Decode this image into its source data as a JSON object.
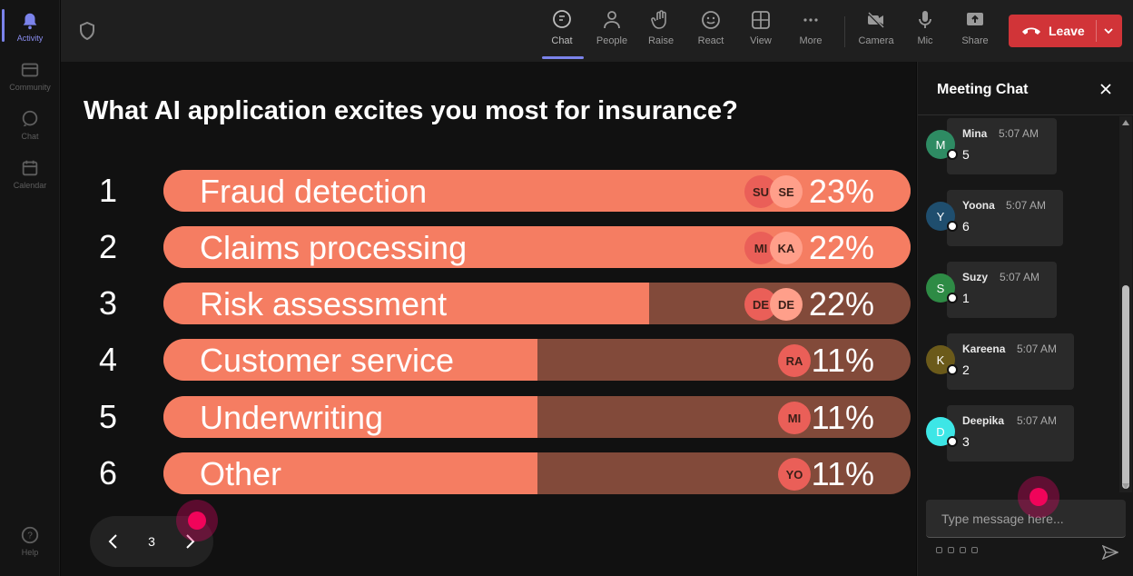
{
  "rail": {
    "items": [
      {
        "label": "Activity"
      },
      {
        "label": "Community"
      },
      {
        "label": "Chat"
      },
      {
        "label": "Calendar"
      },
      {
        "label": "Help"
      }
    ]
  },
  "toolbar": {
    "chat": "Chat",
    "people": "People",
    "raise": "Raise",
    "react": "React",
    "view": "View",
    "more": "More",
    "camera": "Camera",
    "mic": "Mic",
    "share": "Share",
    "leave": "Leave"
  },
  "poll": {
    "question": "What AI application excites you most for insurance?",
    "options": [
      {
        "rank": "1",
        "label": "Fraud detection",
        "percent": "23%",
        "fill": 1.0,
        "avatars": [
          "SU",
          "SE"
        ]
      },
      {
        "rank": "2",
        "label": "Claims processing",
        "percent": "22%",
        "fill": 1.0,
        "avatars": [
          "MI",
          "KA"
        ]
      },
      {
        "rank": "3",
        "label": "Risk assessment",
        "percent": "22%",
        "fill": 0.65,
        "avatars": [
          "DE",
          "DE"
        ]
      },
      {
        "rank": "4",
        "label": "Customer service",
        "percent": "11%",
        "fill": 0.5,
        "avatars": [
          "RA"
        ]
      },
      {
        "rank": "5",
        "label": "Underwriting",
        "percent": "11%",
        "fill": 0.5,
        "avatars": [
          "MI"
        ]
      },
      {
        "rank": "6",
        "label": "Other",
        "percent": "11%",
        "fill": 0.5,
        "avatars": [
          "YO"
        ]
      }
    ],
    "colors": {
      "bar_fill": "#f57d62",
      "bar_track": "#824a3a"
    }
  },
  "pager": {
    "current": "3"
  },
  "chat": {
    "title": "Meeting Chat",
    "messages": [
      {
        "initial": "M",
        "name": "Mina",
        "time": "5:07 AM",
        "text": "5",
        "color": "#2e8b63"
      },
      {
        "initial": "Y",
        "name": "Yoona",
        "time": "5:07 AM",
        "text": "6",
        "color": "#1f4e6e"
      },
      {
        "initial": "S",
        "name": "Suzy",
        "time": "5:07 AM",
        "text": "1",
        "color": "#2e8b45"
      },
      {
        "initial": "K",
        "name": "Kareena",
        "time": "5:07 AM",
        "text": "2",
        "color": "#6b5a1a"
      },
      {
        "initial": "D",
        "name": "Deepika",
        "time": "5:07 AM",
        "text": "3",
        "color": "#3de6e6"
      }
    ],
    "placeholder": "Type message here..."
  }
}
